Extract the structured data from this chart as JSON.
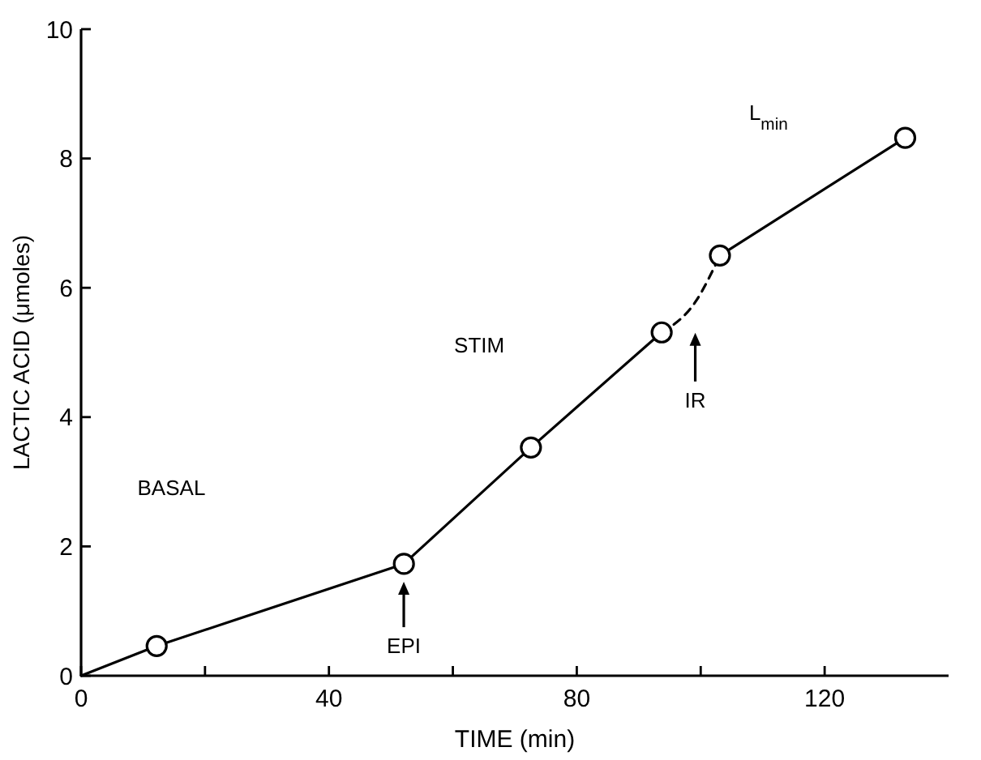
{
  "chart_data": {
    "type": "line",
    "xlabel": "TIME (min)",
    "ylabel": "LACTIC ACID (μmoles)",
    "xlim": [
      0,
      140
    ],
    "xticks": [
      0,
      {
        "value": 20,
        "label": null
      },
      40,
      {
        "value": 60,
        "label": null
      },
      80,
      {
        "value": 100,
        "label": null
      },
      120
    ],
    "ylim": [
      0,
      10
    ],
    "yticks": [
      0,
      2,
      4,
      6,
      8,
      10
    ],
    "grid": false,
    "series": [
      {
        "color": "#000000",
        "line_style": "solid",
        "marker": "none",
        "x": [
          0,
          12.2,
          52.1,
          72.6,
          93.7
        ],
        "values": [
          0,
          0.46,
          1.73,
          3.53,
          5.31
        ]
      },
      {
        "color": "#000000",
        "line_style": "dashed",
        "marker": "none",
        "x": [
          93.7,
          99.2,
          103.1
        ],
        "values": [
          5.31,
          5.79,
          6.5
        ]
      },
      {
        "color": "#000000",
        "line_style": "solid",
        "marker": "none",
        "x": [
          103.1,
          133
        ],
        "values": [
          6.5,
          8.32
        ]
      },
      {
        "type": "scatter",
        "color": "#000000",
        "marker": "circle",
        "x": [
          12.2,
          52.1,
          72.6,
          93.7,
          103.1,
          133
        ],
        "values": [
          0.46,
          1.73,
          3.53,
          5.31,
          6.5,
          8.32
        ]
      }
    ],
    "annotations": [
      "BASAL",
      "STIM",
      "L$_{min}$",
      "EPI",
      "IR"
    ]
  }
}
